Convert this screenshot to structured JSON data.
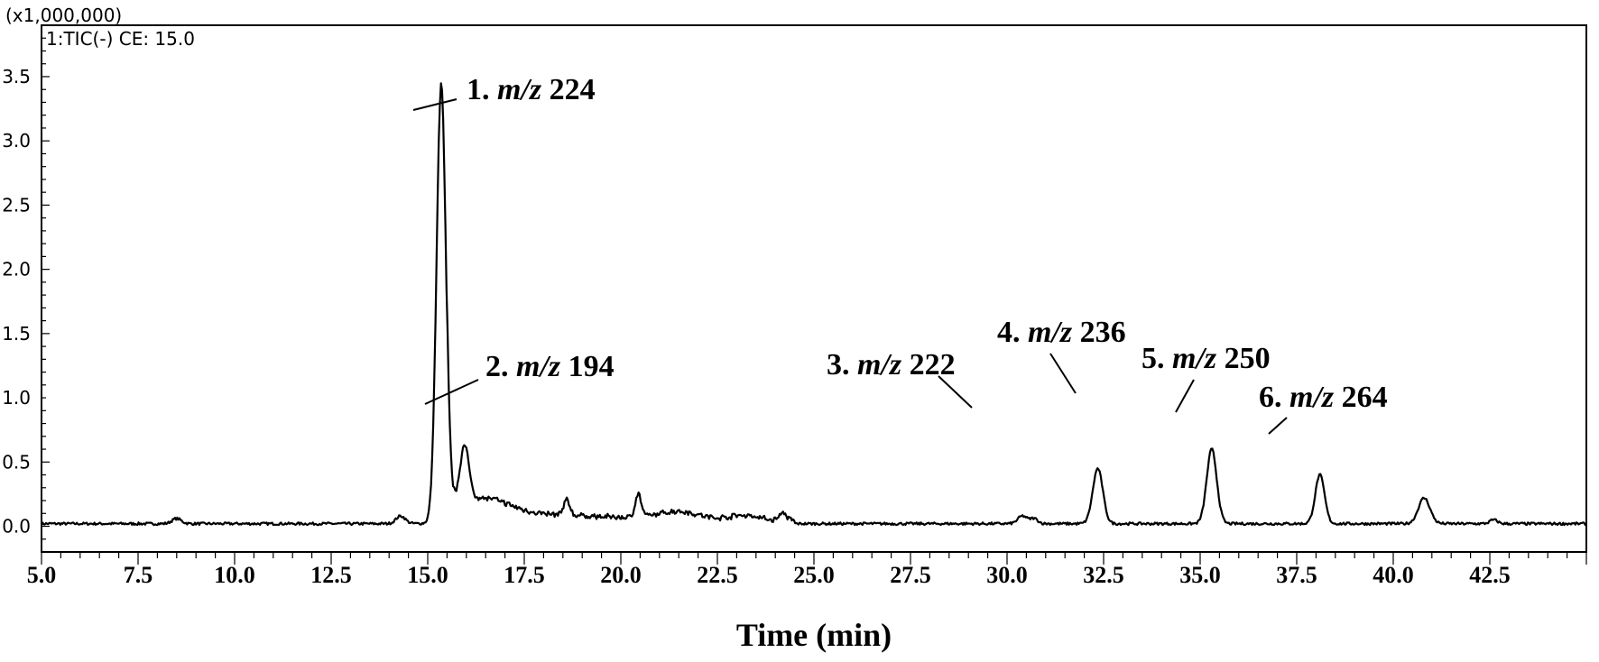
{
  "chart_data": {
    "type": "line",
    "title": "",
    "xlabel": "Time (min)",
    "ylabel": "",
    "y_multiplier_label": "(x1,000,000)",
    "trace_label": "1:TIC(-) CE: 15.0",
    "xlim": [
      5.0,
      45.0
    ],
    "ylim": [
      -0.2,
      3.9
    ],
    "x_ticks": [
      "5.0",
      "7.5",
      "10.0",
      "12.5",
      "15.0",
      "17.5",
      "20.0",
      "22.5",
      "25.0",
      "27.5",
      "30.0",
      "32.5",
      "35.0",
      "37.5",
      "40.0",
      "42.5"
    ],
    "y_ticks": [
      "0.0",
      "0.5",
      "1.0",
      "1.5",
      "2.0",
      "2.5",
      "3.0",
      "3.5"
    ],
    "grid": false,
    "baseline": 0.02,
    "peaks": [
      {
        "x": 15.35,
        "y": 3.43,
        "width": 0.12
      },
      {
        "x": 15.95,
        "y": 0.45,
        "width": 0.12
      },
      {
        "x": 32.35,
        "y": 0.45,
        "width": 0.13
      },
      {
        "x": 35.3,
        "y": 0.6,
        "width": 0.13
      },
      {
        "x": 38.1,
        "y": 0.4,
        "width": 0.12
      },
      {
        "x": 40.8,
        "y": 0.22,
        "width": 0.15
      }
    ],
    "annotations": [
      {
        "num": "1.",
        "mz": "m/z",
        "value": "224",
        "peak_x": 15.35,
        "peak_y": 3.43
      },
      {
        "num": "2.",
        "mz": "m/z",
        "value": "194",
        "peak_x": 15.95,
        "peak_y": 0.45
      },
      {
        "num": "3.",
        "mz": "m/z",
        "value": "222",
        "peak_x": 32.35,
        "peak_y": 0.45
      },
      {
        "num": "4.",
        "mz": "m/z",
        "value": "236",
        "peak_x": 35.3,
        "peak_y": 0.6
      },
      {
        "num": "5.",
        "mz": "m/z",
        "value": "250",
        "peak_x": 38.1,
        "peak_y": 0.4
      },
      {
        "num": "6.",
        "mz": "m/z",
        "value": "264",
        "peak_x": 40.8,
        "peak_y": 0.22
      }
    ]
  }
}
